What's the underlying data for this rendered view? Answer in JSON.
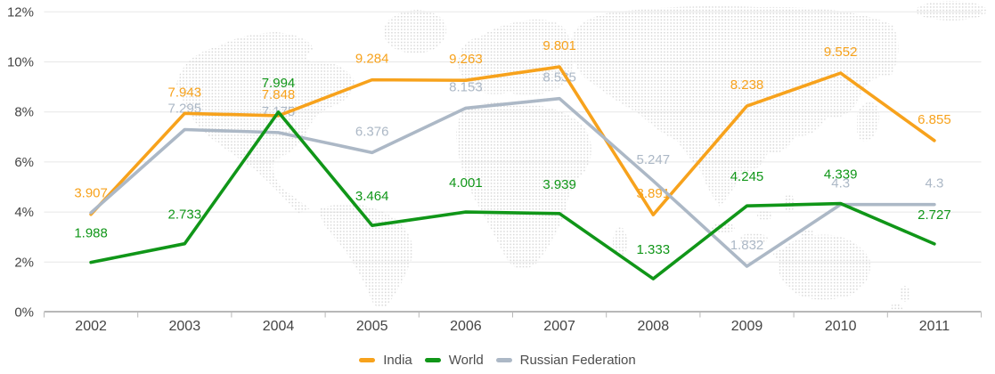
{
  "chart_data": {
    "type": "line",
    "title": "",
    "categories": [
      "2002",
      "2003",
      "2004",
      "2005",
      "2006",
      "2007",
      "2008",
      "2009",
      "2010",
      "2011"
    ],
    "x": [
      2002,
      2003,
      2004,
      2005,
      2006,
      2007,
      2008,
      2009,
      2010,
      2011
    ],
    "y_axis": {
      "min": 0,
      "max": 12,
      "tick_step": 2,
      "tick_labels": [
        "0%",
        "2%",
        "4%",
        "6%",
        "8%",
        "10%",
        "12%"
      ],
      "suffix": "%"
    },
    "series": [
      {
        "name": "India",
        "color": "#F7A21C",
        "values": [
          3.907,
          7.943,
          7.848,
          9.284,
          9.263,
          9.801,
          3.891,
          8.238,
          9.552,
          6.855
        ],
        "point_labels": [
          "3.907",
          "7.943",
          "7.848",
          "9.284",
          "9.263",
          "9.801",
          "3.891",
          "8.238",
          "9.552",
          "6.855"
        ]
      },
      {
        "name": "World",
        "color": "#109618",
        "values": [
          1.988,
          2.733,
          7.994,
          3.464,
          4.001,
          3.939,
          1.333,
          4.245,
          4.339,
          2.727
        ],
        "point_labels": [
          "1.988",
          "2.733",
          "7.994",
          "3.464",
          "4.001",
          "3.939",
          "1.333",
          "4.245",
          "4.339",
          "2.727"
        ]
      },
      {
        "name": "Russian Federation",
        "color": "#ACB8C6",
        "values": [
          3.97,
          7.295,
          7.175,
          6.376,
          8.153,
          8.535,
          5.247,
          1.832,
          4.3,
          4.3
        ],
        "point_labels": [
          null,
          "7.295",
          "7.175",
          "6.376",
          "8.153",
          "8.535",
          "5.247",
          "1.832",
          "4.3",
          "4.3"
        ]
      }
    ],
    "legend": {
      "position": "bottom",
      "items": [
        "India",
        "World",
        "Russian Federation"
      ]
    },
    "grid": true,
    "background": "dotted world map",
    "colors": {
      "axis_text": "#444444",
      "grid_line": "#e7e7e7",
      "axis_line": "#b8b8b8",
      "map_dots": "#d8d8d8"
    }
  }
}
